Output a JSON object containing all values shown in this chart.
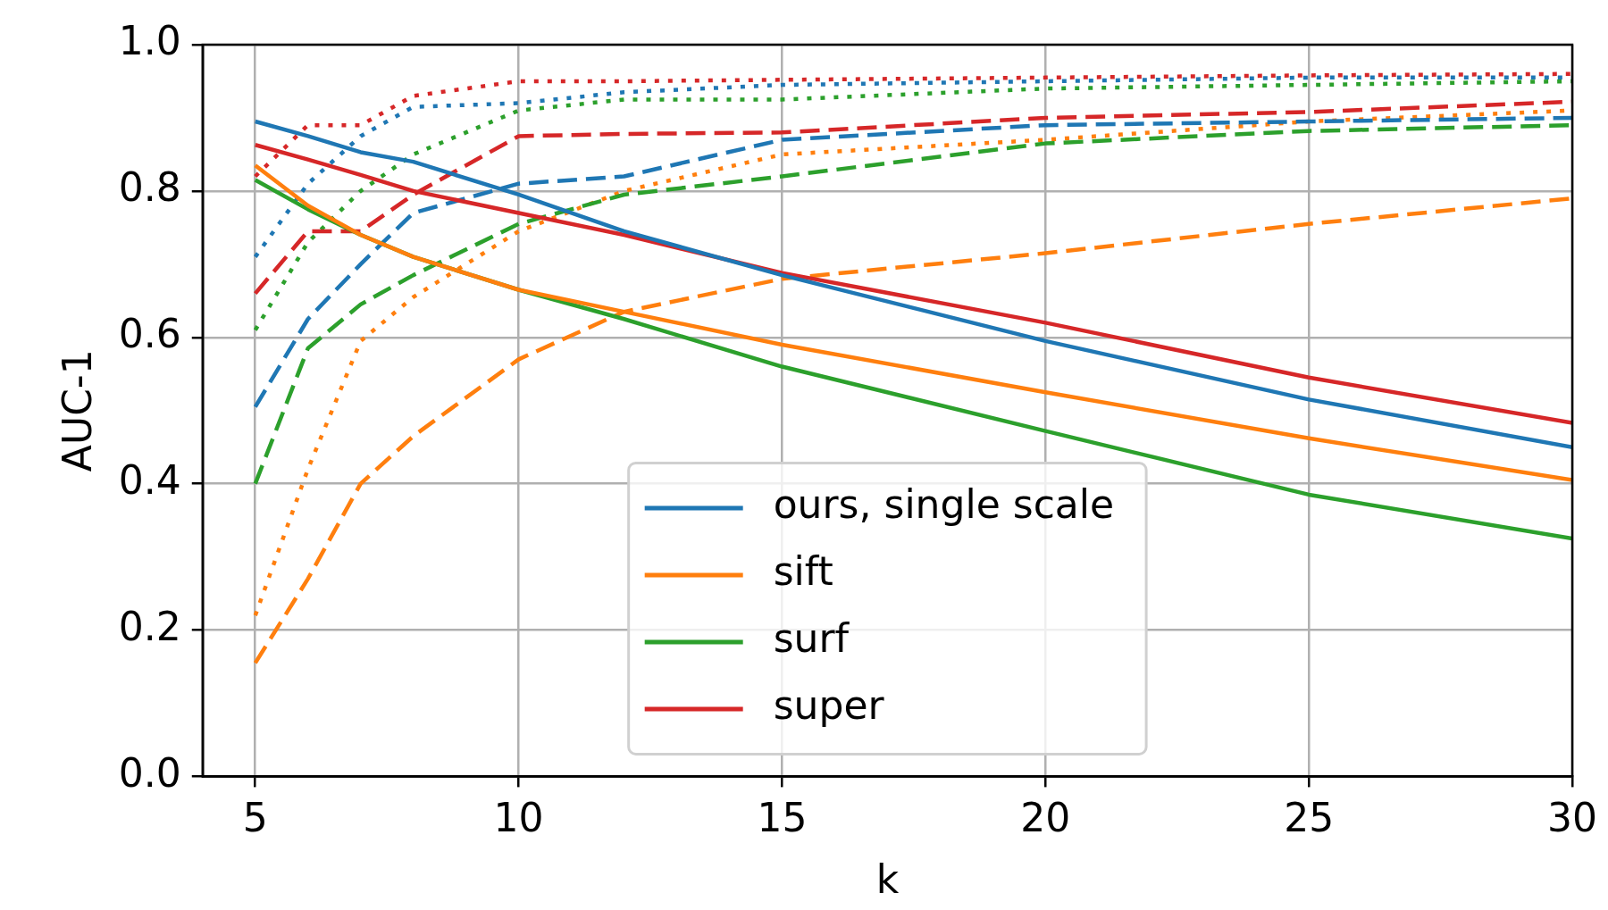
{
  "chart_data": {
    "type": "line",
    "xlabel": "k",
    "ylabel": "AUC-1",
    "xlim": [
      4,
      30
    ],
    "xticks": [
      5,
      10,
      15,
      20,
      25,
      30
    ],
    "ylim": [
      0,
      1
    ],
    "yticks": [
      {
        "value": 0,
        "label": "0.0"
      },
      {
        "value": 0.2,
        "label": "0.2"
      },
      {
        "value": 0.4,
        "label": "0.4"
      },
      {
        "value": 0.6,
        "label": "0.6"
      },
      {
        "value": 0.8,
        "label": "0.8"
      },
      {
        "value": 1,
        "label": "1.0"
      }
    ],
    "grid": true,
    "legend": "bottom",
    "marker": "none",
    "x": [
      5,
      6,
      7,
      8,
      10,
      12,
      15,
      20,
      25,
      30
    ],
    "series": [
      {
        "name": "ours, single scale",
        "color": "#1f77b4",
        "line_style": "solid",
        "values": [
          0.895,
          0.875,
          0.853,
          0.84,
          0.795,
          0.745,
          0.685,
          0.595,
          0.515,
          0.45
        ]
      },
      {
        "name": "sift",
        "color": "#ff7f0e",
        "line_style": "solid",
        "values": [
          0.835,
          0.78,
          0.74,
          0.71,
          0.665,
          0.635,
          0.59,
          0.525,
          0.462,
          0.405
        ]
      },
      {
        "name": "surf",
        "color": "#2ca02c",
        "line_style": "solid",
        "values": [
          0.815,
          0.775,
          0.74,
          0.71,
          0.665,
          0.625,
          0.56,
          0.472,
          0.385,
          0.325
        ]
      },
      {
        "name": "super",
        "color": "#d62728",
        "line_style": "solid",
        "values": [
          0.863,
          0.843,
          0.822,
          0.8,
          0.77,
          0.74,
          0.688,
          0.62,
          0.545,
          0.483
        ]
      },
      {
        "color": "#1f77b4",
        "line_style": "dashed",
        "values": [
          0.505,
          0.625,
          0.7,
          0.77,
          0.81,
          0.82,
          0.87,
          0.89,
          0.895,
          0.9
        ]
      },
      {
        "color": "#ff7f0e",
        "line_style": "dashed",
        "values": [
          0.155,
          0.27,
          0.4,
          0.465,
          0.57,
          0.635,
          0.68,
          0.715,
          0.755,
          0.79
        ]
      },
      {
        "color": "#2ca02c",
        "line_style": "dashed",
        "values": [
          0.4,
          0.585,
          0.645,
          0.685,
          0.755,
          0.795,
          0.82,
          0.865,
          0.882,
          0.89
        ]
      },
      {
        "color": "#d62728",
        "line_style": "dashed",
        "values": [
          0.66,
          0.745,
          0.745,
          0.795,
          0.875,
          0.878,
          0.88,
          0.9,
          0.908,
          0.922
        ]
      },
      {
        "color": "#1f77b4",
        "line_style": "dotted",
        "values": [
          0.71,
          0.81,
          0.875,
          0.915,
          0.92,
          0.935,
          0.945,
          0.95,
          0.955,
          0.955
        ]
      },
      {
        "color": "#ff7f0e",
        "line_style": "dotted",
        "values": [
          0.22,
          0.42,
          0.595,
          0.655,
          0.745,
          0.8,
          0.85,
          0.87,
          0.895,
          0.91
        ]
      },
      {
        "color": "#2ca02c",
        "line_style": "dotted",
        "values": [
          0.61,
          0.73,
          0.8,
          0.85,
          0.91,
          0.925,
          0.925,
          0.94,
          0.945,
          0.95
        ]
      },
      {
        "color": "#d62728",
        "line_style": "dotted",
        "values": [
          0.82,
          0.89,
          0.89,
          0.93,
          0.95,
          0.95,
          0.952,
          0.955,
          0.958,
          0.96
        ]
      }
    ]
  }
}
